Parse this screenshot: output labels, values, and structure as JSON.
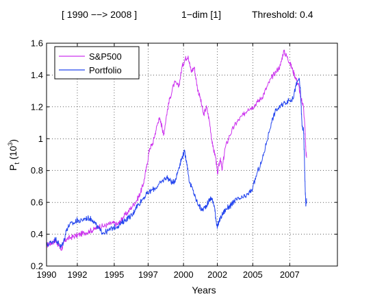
{
  "header": {
    "range": "[ 1990 −−> 2008 ]",
    "dim": "1−dim [1]",
    "threshold": "Threshold: 0.4"
  },
  "chart_data": {
    "type": "line",
    "title": "[ 1990 −−> 2008 ]      1−dim [1]      Threshold: 0.4",
    "xlabel": "Years",
    "ylabel_main": "P",
    "ylabel_sub": "t",
    "ylabel_unit_open": "(10",
    "ylabel_unit_exp": "3",
    "ylabel_unit_close": ")",
    "xlim": [
      1990,
      2008.9
    ],
    "ylim": [
      0.2,
      1.6
    ],
    "grid": true,
    "legend_position": "top-left",
    "x_ticks": [
      {
        "value": 1990.0,
        "label": "1990"
      },
      {
        "value": 1992.0,
        "label": "1992"
      },
      {
        "value": 1994.4,
        "label": "1995"
      },
      {
        "value": 1996.6,
        "label": "1997"
      },
      {
        "value": 1998.9,
        "label": "2000"
      },
      {
        "value": 2001.1,
        "label": "2002"
      },
      {
        "value": 2003.4,
        "label": "2005"
      },
      {
        "value": 2005.8,
        "label": "2007"
      }
    ],
    "y_ticks": [
      {
        "value": 0.2,
        "label": "0.2"
      },
      {
        "value": 0.4,
        "label": "0.4"
      },
      {
        "value": 0.6,
        "label": "0.6"
      },
      {
        "value": 0.8,
        "label": "0.8"
      },
      {
        "value": 1.0,
        "label": "1"
      },
      {
        "value": 1.2,
        "label": "1.2"
      },
      {
        "value": 1.4,
        "label": "1.4"
      },
      {
        "value": 1.6,
        "label": "1.6"
      }
    ],
    "series": [
      {
        "name": "S&P500",
        "color": "#cc33ee",
        "points": [
          [
            1990.0,
            0.33
          ],
          [
            1990.2,
            0.34
          ],
          [
            1990.4,
            0.35
          ],
          [
            1990.6,
            0.36
          ],
          [
            1990.8,
            0.33
          ],
          [
            1990.95,
            0.3
          ],
          [
            1991.1,
            0.34
          ],
          [
            1991.3,
            0.37
          ],
          [
            1991.6,
            0.38
          ],
          [
            1991.9,
            0.39
          ],
          [
            1992.2,
            0.4
          ],
          [
            1992.5,
            0.41
          ],
          [
            1992.8,
            0.42
          ],
          [
            1993.1,
            0.43
          ],
          [
            1993.4,
            0.45
          ],
          [
            1993.7,
            0.45
          ],
          [
            1994.0,
            0.46
          ],
          [
            1994.3,
            0.47
          ],
          [
            1994.6,
            0.46
          ],
          [
            1994.8,
            0.48
          ],
          [
            1995.0,
            0.51
          ],
          [
            1995.3,
            0.54
          ],
          [
            1995.6,
            0.58
          ],
          [
            1995.9,
            0.62
          ],
          [
            1996.1,
            0.66
          ],
          [
            1996.3,
            0.72
          ],
          [
            1996.5,
            0.82
          ],
          [
            1996.7,
            0.94
          ],
          [
            1996.9,
            0.97
          ],
          [
            1997.1,
            1.05
          ],
          [
            1997.3,
            1.13
          ],
          [
            1997.5,
            1.08
          ],
          [
            1997.6,
            1.02
          ],
          [
            1997.8,
            1.15
          ],
          [
            1998.0,
            1.25
          ],
          [
            1998.3,
            1.35
          ],
          [
            1998.6,
            1.33
          ],
          [
            1998.8,
            1.45
          ],
          [
            1999.0,
            1.5
          ],
          [
            1999.2,
            1.52
          ],
          [
            1999.4,
            1.42
          ],
          [
            1999.6,
            1.45
          ],
          [
            1999.8,
            1.32
          ],
          [
            2000.0,
            1.25
          ],
          [
            2000.2,
            1.15
          ],
          [
            2000.4,
            1.2
          ],
          [
            2000.6,
            1.1
          ],
          [
            2000.8,
            0.95
          ],
          [
            2001.0,
            0.88
          ],
          [
            2001.1,
            0.78
          ],
          [
            2001.3,
            0.88
          ],
          [
            2001.4,
            0.8
          ],
          [
            2001.6,
            0.94
          ],
          [
            2001.9,
            1.02
          ],
          [
            2002.2,
            1.08
          ],
          [
            2002.5,
            1.12
          ],
          [
            2002.8,
            1.15
          ],
          [
            2003.1,
            1.19
          ],
          [
            2003.4,
            1.2
          ],
          [
            2003.7,
            1.23
          ],
          [
            2004.0,
            1.26
          ],
          [
            2004.3,
            1.32
          ],
          [
            2004.6,
            1.38
          ],
          [
            2004.9,
            1.42
          ],
          [
            2005.2,
            1.46
          ],
          [
            2005.4,
            1.55
          ],
          [
            2005.6,
            1.52
          ],
          [
            2005.8,
            1.48
          ],
          [
            2006.0,
            1.43
          ],
          [
            2006.2,
            1.38
          ],
          [
            2006.4,
            1.33
          ],
          [
            2006.5,
            1.26
          ],
          [
            2006.7,
            1.2
          ],
          [
            2006.8,
            1.05
          ],
          [
            2006.85,
            0.92
          ],
          [
            2006.9,
            0.88
          ]
        ]
      },
      {
        "name": "Portfolio",
        "color": "#2244ee",
        "points": [
          [
            1990.0,
            0.33
          ],
          [
            1990.3,
            0.35
          ],
          [
            1990.6,
            0.37
          ],
          [
            1990.8,
            0.34
          ],
          [
            1990.95,
            0.32
          ],
          [
            1991.1,
            0.35
          ],
          [
            1991.3,
            0.43
          ],
          [
            1991.5,
            0.46
          ],
          [
            1991.8,
            0.47
          ],
          [
            1992.0,
            0.49
          ],
          [
            1992.2,
            0.48
          ],
          [
            1992.5,
            0.5
          ],
          [
            1992.8,
            0.5
          ],
          [
            1993.0,
            0.49
          ],
          [
            1993.2,
            0.46
          ],
          [
            1993.5,
            0.42
          ],
          [
            1993.7,
            0.41
          ],
          [
            1994.0,
            0.42
          ],
          [
            1994.3,
            0.44
          ],
          [
            1994.6,
            0.45
          ],
          [
            1994.9,
            0.47
          ],
          [
            1995.1,
            0.49
          ],
          [
            1995.4,
            0.51
          ],
          [
            1995.6,
            0.52
          ],
          [
            1995.8,
            0.57
          ],
          [
            1996.0,
            0.59
          ],
          [
            1996.3,
            0.63
          ],
          [
            1996.6,
            0.66
          ],
          [
            1996.9,
            0.68
          ],
          [
            1997.2,
            0.7
          ],
          [
            1997.5,
            0.73
          ],
          [
            1997.8,
            0.76
          ],
          [
            1998.0,
            0.74
          ],
          [
            1998.2,
            0.72
          ],
          [
            1998.4,
            0.75
          ],
          [
            1998.6,
            0.82
          ],
          [
            1998.8,
            0.88
          ],
          [
            1998.95,
            0.92
          ],
          [
            1999.1,
            0.86
          ],
          [
            1999.3,
            0.72
          ],
          [
            1999.5,
            0.68
          ],
          [
            1999.7,
            0.62
          ],
          [
            1999.9,
            0.58
          ],
          [
            2000.1,
            0.55
          ],
          [
            2000.3,
            0.57
          ],
          [
            2000.5,
            0.6
          ],
          [
            2000.7,
            0.63
          ],
          [
            2000.9,
            0.58
          ],
          [
            2001.0,
            0.5
          ],
          [
            2001.1,
            0.44
          ],
          [
            2001.2,
            0.48
          ],
          [
            2001.4,
            0.52
          ],
          [
            2001.6,
            0.55
          ],
          [
            2001.8,
            0.57
          ],
          [
            2002.0,
            0.58
          ],
          [
            2002.2,
            0.61
          ],
          [
            2002.5,
            0.62
          ],
          [
            2002.8,
            0.63
          ],
          [
            2003.1,
            0.65
          ],
          [
            2003.4,
            0.69
          ],
          [
            2003.7,
            0.79
          ],
          [
            2004.0,
            0.86
          ],
          [
            2004.3,
            0.98
          ],
          [
            2004.6,
            1.1
          ],
          [
            2004.9,
            1.18
          ],
          [
            2005.2,
            1.2
          ],
          [
            2005.5,
            1.23
          ],
          [
            2005.8,
            1.24
          ],
          [
            2006.0,
            1.25
          ],
          [
            2006.2,
            1.33
          ],
          [
            2006.4,
            1.38
          ],
          [
            2006.5,
            1.3
          ],
          [
            2006.6,
            1.08
          ],
          [
            2006.7,
            1.05
          ],
          [
            2006.75,
            0.9
          ],
          [
            2006.8,
            0.7
          ],
          [
            2006.85,
            0.58
          ],
          [
            2006.9,
            0.62
          ]
        ]
      }
    ]
  }
}
